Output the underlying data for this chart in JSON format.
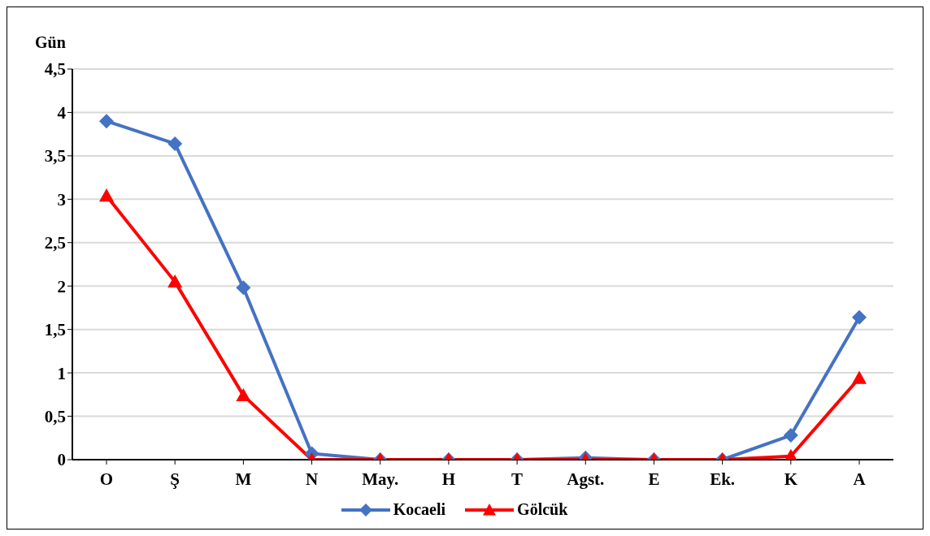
{
  "chart_data": {
    "type": "line",
    "ylabel": "Gün",
    "categories": [
      "O",
      "Ş",
      "M",
      "N",
      "May.",
      "H",
      "T",
      "Agst.",
      "E",
      "Ek.",
      "K",
      "A"
    ],
    "series": [
      {
        "name": "Kocaeli",
        "color": "#4472c4",
        "marker": "diamond",
        "values": [
          3.9,
          3.64,
          1.98,
          0.07,
          0,
          0,
          0,
          0.02,
          0,
          0,
          0.28,
          1.64
        ]
      },
      {
        "name": "Gölcük",
        "color": "#ff0000",
        "marker": "triangle",
        "values": [
          3.04,
          2.05,
          0.74,
          0,
          0,
          0,
          0,
          0,
          0,
          0,
          0.04,
          0.94
        ]
      }
    ],
    "ylim": [
      0,
      4.5
    ],
    "yticks": [
      0,
      {
        "value": 0.5,
        "label": "0,5"
      },
      1,
      {
        "value": 1.5,
        "label": "1,5"
      },
      2,
      {
        "value": 2.5,
        "label": "2,5"
      },
      3,
      {
        "value": 3.5,
        "label": "3,5"
      },
      4,
      {
        "value": 4.5,
        "label": "4,5"
      }
    ],
    "grid": "y",
    "legend": "bottom",
    "line_style": "solid"
  }
}
